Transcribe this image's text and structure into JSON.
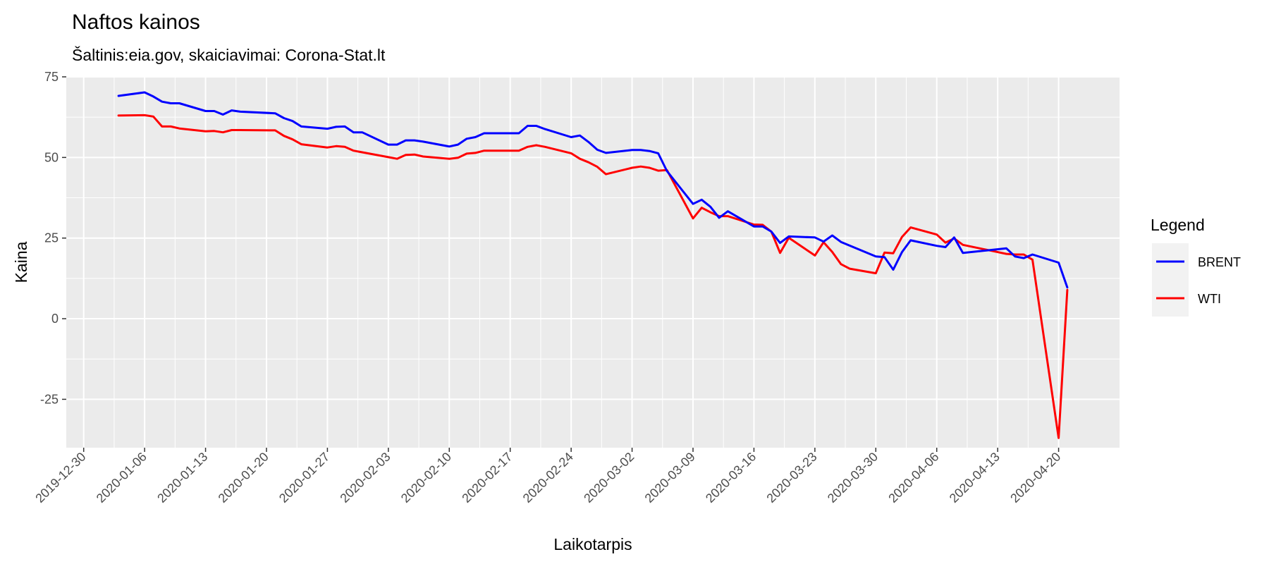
{
  "chart_data": {
    "type": "line",
    "title": "Naftos kainos",
    "subtitle": "Šaltinis:eia.gov, skaiciavimai: Corona-Stat.lt",
    "xlabel": "Laikotarpis",
    "ylabel": "Kaina",
    "x_type": "date",
    "xlim": [
      "2019-12-28",
      "2020-04-27"
    ],
    "ylim": [
      -40,
      75
    ],
    "x_ticks": [
      "2019-12-30",
      "2020-01-06",
      "2020-01-13",
      "2020-01-20",
      "2020-01-27",
      "2020-02-03",
      "2020-02-10",
      "2020-02-17",
      "2020-02-24",
      "2020-03-02",
      "2020-03-09",
      "2020-03-16",
      "2020-03-23",
      "2020-03-30",
      "2020-04-06",
      "2020-04-13",
      "2020-04-20"
    ],
    "y_ticks": [
      -25,
      0,
      25,
      50,
      75
    ],
    "grid": true,
    "legend": {
      "title": "Legend",
      "position": "right"
    },
    "series": [
      {
        "name": "BRENT",
        "color": "#0000ff",
        "points": [
          [
            "2020-01-03",
            69.1
          ],
          [
            "2020-01-06",
            70.2
          ],
          [
            "2020-01-07",
            68.9
          ],
          [
            "2020-01-08",
            67.3
          ],
          [
            "2020-01-09",
            66.8
          ],
          [
            "2020-01-10",
            66.8
          ],
          [
            "2020-01-13",
            64.4
          ],
          [
            "2020-01-14",
            64.4
          ],
          [
            "2020-01-15",
            63.3
          ],
          [
            "2020-01-16",
            64.6
          ],
          [
            "2020-01-17",
            64.2
          ],
          [
            "2020-01-21",
            63.7
          ],
          [
            "2020-01-22",
            62.2
          ],
          [
            "2020-01-23",
            61.3
          ],
          [
            "2020-01-24",
            59.6
          ],
          [
            "2020-01-27",
            58.9
          ],
          [
            "2020-01-28",
            59.5
          ],
          [
            "2020-01-29",
            59.6
          ],
          [
            "2020-01-30",
            57.8
          ],
          [
            "2020-01-31",
            57.8
          ],
          [
            "2020-02-03",
            54.0
          ],
          [
            "2020-02-04",
            54.0
          ],
          [
            "2020-02-05",
            55.3
          ],
          [
            "2020-02-06",
            55.3
          ],
          [
            "2020-02-07",
            54.9
          ],
          [
            "2020-02-10",
            53.4
          ],
          [
            "2020-02-11",
            54.0
          ],
          [
            "2020-02-12",
            55.8
          ],
          [
            "2020-02-13",
            56.3
          ],
          [
            "2020-02-14",
            57.5
          ],
          [
            "2020-02-18",
            57.5
          ],
          [
            "2020-02-19",
            59.8
          ],
          [
            "2020-02-20",
            59.8
          ],
          [
            "2020-02-21",
            58.8
          ],
          [
            "2020-02-24",
            56.3
          ],
          [
            "2020-02-25",
            56.8
          ],
          [
            "2020-02-26",
            54.8
          ],
          [
            "2020-02-27",
            52.4
          ],
          [
            "2020-02-28",
            51.4
          ],
          [
            "2020-03-02",
            52.3
          ],
          [
            "2020-03-03",
            52.3
          ],
          [
            "2020-03-04",
            52.0
          ],
          [
            "2020-03-05",
            51.3
          ],
          [
            "2020-03-06",
            45.8
          ],
          [
            "2020-03-09",
            35.6
          ],
          [
            "2020-03-10",
            36.9
          ],
          [
            "2020-03-11",
            34.7
          ],
          [
            "2020-03-12",
            31.3
          ],
          [
            "2020-03-13",
            33.3
          ],
          [
            "2020-03-16",
            28.6
          ],
          [
            "2020-03-17",
            28.6
          ],
          [
            "2020-03-18",
            27.0
          ],
          [
            "2020-03-19",
            23.5
          ],
          [
            "2020-03-20",
            25.5
          ],
          [
            "2020-03-23",
            25.2
          ],
          [
            "2020-03-24",
            23.9
          ],
          [
            "2020-03-25",
            25.8
          ],
          [
            "2020-03-26",
            23.8
          ],
          [
            "2020-03-30",
            19.3
          ],
          [
            "2020-03-31",
            19.1
          ],
          [
            "2020-04-01",
            15.2
          ],
          [
            "2020-04-02",
            20.6
          ],
          [
            "2020-04-03",
            24.3
          ],
          [
            "2020-04-06",
            22.6
          ],
          [
            "2020-04-07",
            22.2
          ],
          [
            "2020-04-08",
            25.2
          ],
          [
            "2020-04-09",
            20.4
          ],
          [
            "2020-04-14",
            21.8
          ],
          [
            "2020-04-15",
            19.3
          ],
          [
            "2020-04-16",
            18.8
          ],
          [
            "2020-04-17",
            19.9
          ],
          [
            "2020-04-20",
            17.4
          ],
          [
            "2020-04-21",
            9.7
          ]
        ]
      },
      {
        "name": "WTI",
        "color": "#ff0000",
        "points": [
          [
            "2020-01-03",
            63.0
          ],
          [
            "2020-01-06",
            63.1
          ],
          [
            "2020-01-07",
            62.7
          ],
          [
            "2020-01-08",
            59.6
          ],
          [
            "2020-01-09",
            59.6
          ],
          [
            "2020-01-10",
            59.0
          ],
          [
            "2020-01-13",
            58.1
          ],
          [
            "2020-01-14",
            58.2
          ],
          [
            "2020-01-15",
            57.8
          ],
          [
            "2020-01-16",
            58.5
          ],
          [
            "2020-01-17",
            58.5
          ],
          [
            "2020-01-21",
            58.4
          ],
          [
            "2020-01-22",
            56.7
          ],
          [
            "2020-01-23",
            55.6
          ],
          [
            "2020-01-24",
            54.1
          ],
          [
            "2020-01-27",
            53.1
          ],
          [
            "2020-01-28",
            53.5
          ],
          [
            "2020-01-29",
            53.3
          ],
          [
            "2020-01-30",
            52.1
          ],
          [
            "2020-01-31",
            51.6
          ],
          [
            "2020-02-03",
            50.1
          ],
          [
            "2020-02-04",
            49.6
          ],
          [
            "2020-02-05",
            50.8
          ],
          [
            "2020-02-06",
            50.9
          ],
          [
            "2020-02-07",
            50.3
          ],
          [
            "2020-02-10",
            49.6
          ],
          [
            "2020-02-11",
            49.9
          ],
          [
            "2020-02-12",
            51.2
          ],
          [
            "2020-02-13",
            51.4
          ],
          [
            "2020-02-14",
            52.1
          ],
          [
            "2020-02-18",
            52.1
          ],
          [
            "2020-02-19",
            53.3
          ],
          [
            "2020-02-20",
            53.8
          ],
          [
            "2020-02-21",
            53.3
          ],
          [
            "2020-02-24",
            51.3
          ],
          [
            "2020-02-25",
            49.6
          ],
          [
            "2020-02-26",
            48.5
          ],
          [
            "2020-02-27",
            47.1
          ],
          [
            "2020-02-28",
            44.8
          ],
          [
            "2020-03-02",
            46.8
          ],
          [
            "2020-03-03",
            47.2
          ],
          [
            "2020-03-04",
            46.8
          ],
          [
            "2020-03-05",
            45.9
          ],
          [
            "2020-03-06",
            46.1
          ],
          [
            "2020-03-09",
            31.1
          ],
          [
            "2020-03-10",
            34.4
          ],
          [
            "2020-03-11",
            33.0
          ],
          [
            "2020-03-12",
            31.8
          ],
          [
            "2020-03-13",
            31.8
          ],
          [
            "2020-03-16",
            29.2
          ],
          [
            "2020-03-17",
            29.1
          ],
          [
            "2020-03-18",
            27.0
          ],
          [
            "2020-03-19",
            20.4
          ],
          [
            "2020-03-20",
            25.1
          ],
          [
            "2020-03-23",
            19.6
          ],
          [
            "2020-03-24",
            23.7
          ],
          [
            "2020-03-25",
            20.7
          ],
          [
            "2020-03-26",
            16.9
          ],
          [
            "2020-03-27",
            15.5
          ],
          [
            "2020-03-30",
            14.1
          ],
          [
            "2020-03-31",
            20.5
          ],
          [
            "2020-04-01",
            20.3
          ],
          [
            "2020-04-02",
            25.3
          ],
          [
            "2020-04-03",
            28.3
          ],
          [
            "2020-04-06",
            26.1
          ],
          [
            "2020-04-07",
            23.6
          ],
          [
            "2020-04-08",
            24.9
          ],
          [
            "2020-04-09",
            22.9
          ],
          [
            "2020-04-14",
            20.1
          ],
          [
            "2020-04-15",
            19.9
          ],
          [
            "2020-04-16",
            19.9
          ],
          [
            "2020-04-17",
            18.3
          ],
          [
            "2020-04-20",
            -37.0
          ],
          [
            "2020-04-21",
            8.9
          ]
        ]
      }
    ]
  }
}
